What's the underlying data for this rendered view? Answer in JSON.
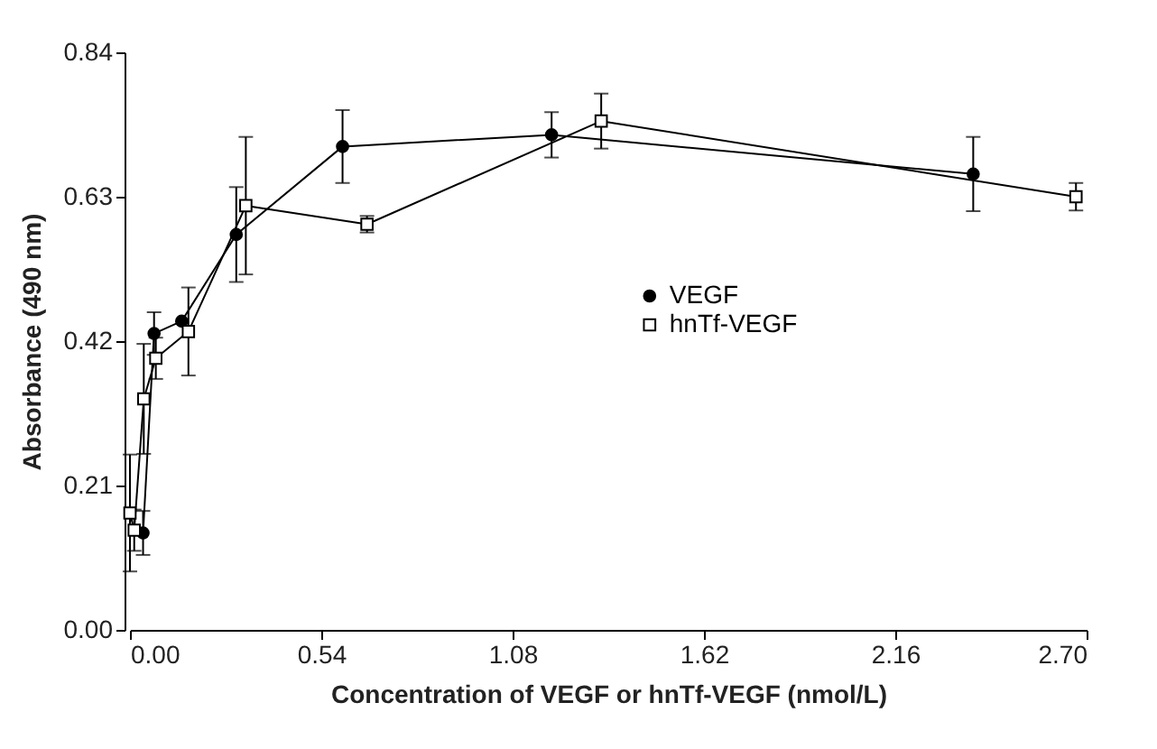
{
  "chart_data": {
    "type": "line",
    "xlabel": "Concentration of VEGF or hnTf-VEGF (nmol/L)",
    "ylabel": "Absorbance (490 nm)",
    "xlim": [
      0,
      2.7
    ],
    "ylim": [
      0,
      0.84
    ],
    "xticks": [
      {
        "value": 0,
        "label": "0.00"
      },
      0.54,
      1.08,
      1.62,
      2.16,
      {
        "value": 2.7,
        "label": "2.70"
      }
    ],
    "yticks": [
      {
        "value": 0,
        "label": "0.00"
      },
      0.21,
      0.42,
      0.63,
      0.84
    ],
    "grid": false,
    "legend": "center",
    "line_style": "solid",
    "series": [
      {
        "name": "VEGF",
        "color": "#000000",
        "marker": "circle",
        "x": [
          0.037,
          0.068,
          0.146,
          0.3,
          0.6,
          1.19,
          2.38
        ],
        "values": [
          0.141,
          0.431,
          0.449,
          0.575,
          0.703,
          0.72,
          0.663
        ],
        "errors": [
          0.032,
          0.031,
          null,
          0.069,
          0.053,
          0.033,
          0.054
        ]
      },
      {
        "name": "hnTf-VEGF",
        "color": "#000000",
        "marker": "square",
        "x": [
          0.0,
          0.012,
          0.039,
          0.073,
          0.165,
          0.327,
          0.669,
          1.33,
          2.67
        ],
        "values": [
          0.17,
          0.145,
          0.336,
          0.395,
          0.434,
          0.617,
          0.59,
          0.74,
          0.63
        ],
        "errors": [
          0.085,
          0.03,
          0.08,
          0.03,
          0.064,
          0.1,
          0.012,
          0.04,
          0.02
        ]
      }
    ]
  }
}
